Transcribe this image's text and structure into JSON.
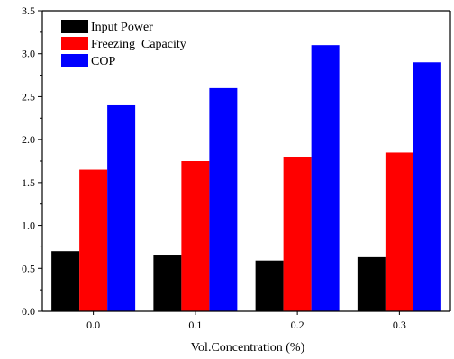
{
  "chart_data": {
    "type": "bar",
    "categories": [
      "0.0",
      "0.1",
      "0.2",
      "0.3"
    ],
    "series": [
      {
        "name": "Input Power",
        "values": [
          0.7,
          0.66,
          0.59,
          0.63
        ],
        "color": "#000000"
      },
      {
        "name": "Freezing  Capacity",
        "values": [
          1.65,
          1.75,
          1.8,
          1.85
        ],
        "color": "#ff0000"
      },
      {
        "name": "COP",
        "values": [
          2.4,
          2.6,
          3.1,
          2.9
        ],
        "color": "#0000ff"
      }
    ],
    "xlabel": "Vol.Concentration (%)",
    "ylabel": "",
    "ylim": [
      0,
      3.5
    ],
    "yticks": [
      "0.0",
      "0.5",
      "1.0",
      "1.5",
      "2.0",
      "2.5",
      "3.0",
      "3.5"
    ],
    "grid": false,
    "legend_position": "top-left"
  }
}
